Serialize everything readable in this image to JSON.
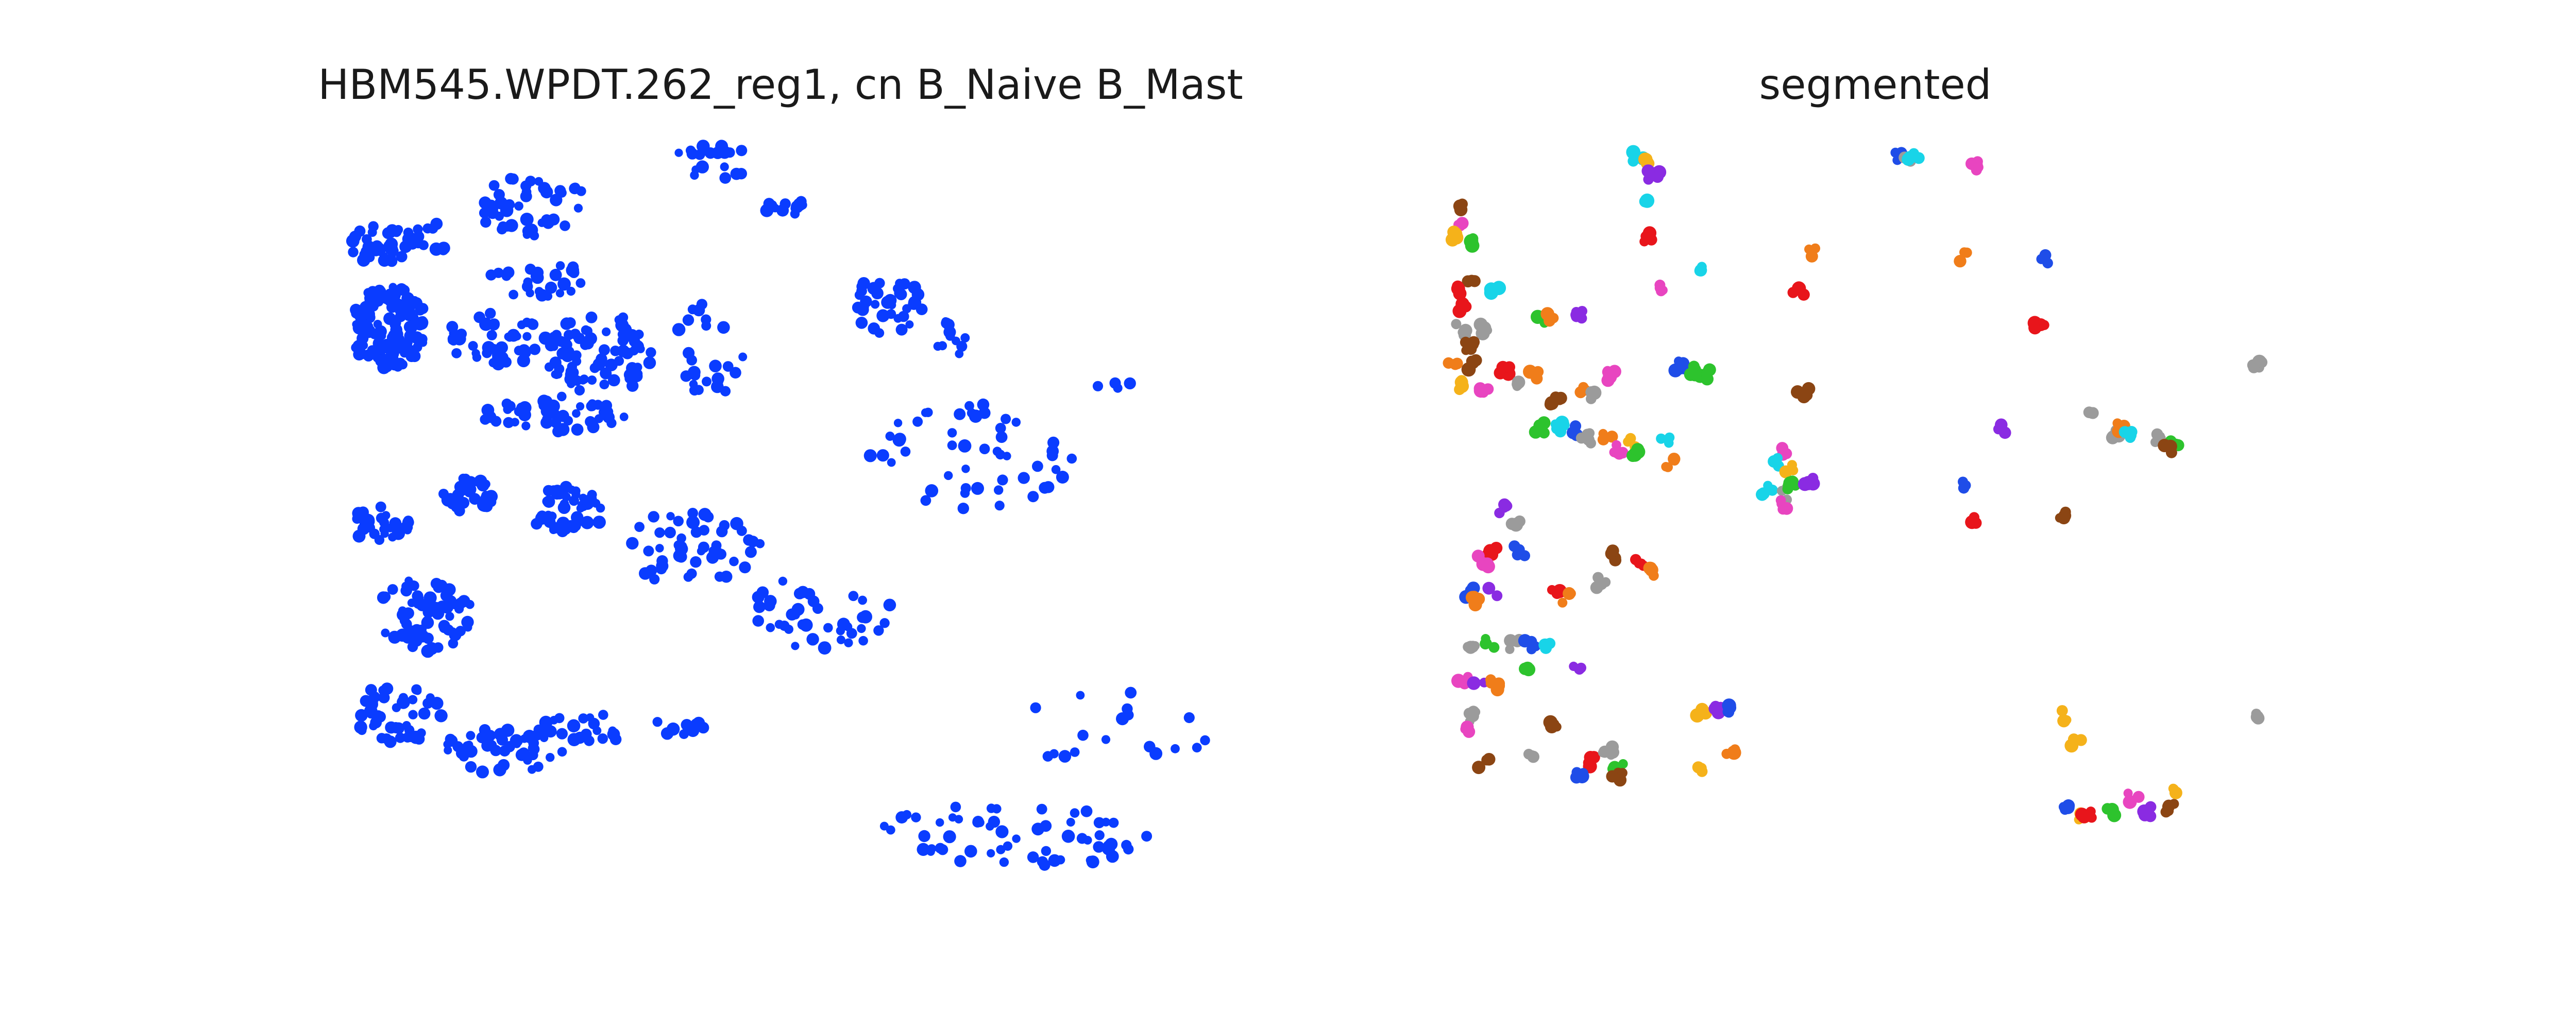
{
  "chart_data": [
    {
      "type": "scatter",
      "title": "HBM545.WPDT.262_reg1, cn B_Naive B_Mast",
      "axes_visible": false,
      "xlim": [
        0,
        1000
      ],
      "ylim": [
        0,
        900
      ],
      "color": "#0a3cff",
      "series": [
        {
          "clusters": [
            {
              "cx": 40,
              "cy": 140,
              "rx": 40,
              "ry": 25,
              "n": 40
            },
            {
              "cx": 50,
              "cy": 250,
              "rx": 45,
              "ry": 55,
              "n": 120
            },
            {
              "cx": 100,
              "cy": 130,
              "rx": 30,
              "ry": 20,
              "n": 12
            },
            {
              "cx": 210,
              "cy": 90,
              "rx": 70,
              "ry": 40,
              "n": 45
            },
            {
              "cx": 220,
              "cy": 185,
              "rx": 55,
              "ry": 25,
              "n": 25
            },
            {
              "cx": 170,
              "cy": 265,
              "rx": 60,
              "ry": 35,
              "n": 45
            },
            {
              "cx": 290,
              "cy": 285,
              "rx": 60,
              "ry": 55,
              "n": 80
            },
            {
              "cx": 240,
              "cy": 365,
              "rx": 85,
              "ry": 25,
              "n": 45
            },
            {
              "cx": 420,
              "cy": 30,
              "rx": 45,
              "ry": 25,
              "n": 20
            },
            {
              "cx": 505,
              "cy": 90,
              "rx": 25,
              "ry": 15,
              "n": 12
            },
            {
              "cx": 415,
              "cy": 285,
              "rx": 40,
              "ry": 70,
              "n": 25
            },
            {
              "cx": 620,
              "cy": 220,
              "rx": 45,
              "ry": 40,
              "n": 35
            },
            {
              "cx": 690,
              "cy": 260,
              "rx": 20,
              "ry": 30,
              "n": 12
            },
            {
              "cx": 710,
              "cy": 420,
              "rx": 120,
              "ry": 70,
              "n": 50
            },
            {
              "cx": 890,
              "cy": 330,
              "rx": 40,
              "ry": 10,
              "n": 4
            },
            {
              "cx": 40,
              "cy": 510,
              "rx": 35,
              "ry": 25,
              "n": 30
            },
            {
              "cx": 140,
              "cy": 470,
              "rx": 30,
              "ry": 25,
              "n": 35
            },
            {
              "cx": 250,
              "cy": 490,
              "rx": 50,
              "ry": 30,
              "n": 45
            },
            {
              "cx": 400,
              "cy": 540,
              "rx": 75,
              "ry": 55,
              "n": 50
            },
            {
              "cx": 90,
              "cy": 630,
              "rx": 55,
              "ry": 50,
              "n": 65
            },
            {
              "cx": 60,
              "cy": 760,
              "rx": 50,
              "ry": 40,
              "n": 45
            },
            {
              "cx": 180,
              "cy": 810,
              "rx": 70,
              "ry": 30,
              "n": 45
            },
            {
              "cx": 270,
              "cy": 780,
              "rx": 55,
              "ry": 25,
              "n": 25
            },
            {
              "cx": 380,
              "cy": 780,
              "rx": 30,
              "ry": 15,
              "n": 10
            },
            {
              "cx": 540,
              "cy": 630,
              "rx": 90,
              "ry": 50,
              "n": 40
            },
            {
              "cx": 720,
              "cy": 1000,
              "rx": 0,
              "ry": 0,
              "n": 0
            },
            {
              "cx": 720,
              "cy": 960,
              "rx": 0,
              "ry": 0,
              "n": 0
            },
            {
              "cx": 770,
              "cy": 920,
              "rx": 160,
              "ry": 45,
              "n": 60
            },
            {
              "cx": 880,
              "cy": 780,
              "rx": 110,
              "ry": 60,
              "n": 18
            }
          ]
        }
      ]
    },
    {
      "type": "scatter",
      "title": "segmented",
      "axes_visible": false,
      "xlim": [
        0,
        1000
      ],
      "ylim": [
        0,
        900
      ],
      "palette": [
        "#1f4de8",
        "#e8151b",
        "#f5b21a",
        "#2dc32d",
        "#f07d1a",
        "#8b4513",
        "#9b9b9b",
        "#e845c0",
        "#8a2be2",
        "#18d4e8"
      ],
      "series": [
        {
          "blobs": [
            {
              "x": 360,
              "y": 15,
              "c": 9
            },
            {
              "x": 375,
              "y": 20,
              "c": 2
            },
            {
              "x": 860,
              "y": 15,
              "c": 0
            },
            {
              "x": 880,
              "y": 20,
              "c": 6
            },
            {
              "x": 895,
              "y": 15,
              "c": 9
            },
            {
              "x": 1010,
              "y": 30,
              "c": 7
            },
            {
              "x": 20,
              "y": 110,
              "c": 5
            },
            {
              "x": 10,
              "y": 150,
              "c": 7
            },
            {
              "x": 0,
              "y": 170,
              "c": 2
            },
            {
              "x": 30,
              "y": 180,
              "c": 3
            },
            {
              "x": 390,
              "y": 50,
              "c": 8
            },
            {
              "x": 380,
              "y": 100,
              "c": 9
            },
            {
              "x": 380,
              "y": 170,
              "c": 1
            },
            {
              "x": 40,
              "y": 250,
              "c": 5
            },
            {
              "x": 20,
              "y": 270,
              "c": 1
            },
            {
              "x": 80,
              "y": 280,
              "c": 9
            },
            {
              "x": 20,
              "y": 310,
              "c": 1
            },
            {
              "x": 15,
              "y": 350,
              "c": 6
            },
            {
              "x": 60,
              "y": 350,
              "c": 6
            },
            {
              "x": 30,
              "y": 380,
              "c": 5
            },
            {
              "x": 0,
              "y": 410,
              "c": 4
            },
            {
              "x": 40,
              "y": 420,
              "c": 5
            },
            {
              "x": 20,
              "y": 460,
              "c": 2
            },
            {
              "x": 60,
              "y": 470,
              "c": 7
            },
            {
              "x": 100,
              "y": 430,
              "c": 1
            },
            {
              "x": 130,
              "y": 450,
              "c": 6
            },
            {
              "x": 160,
              "y": 440,
              "c": 4
            },
            {
              "x": 170,
              "y": 330,
              "c": 3
            },
            {
              "x": 185,
              "y": 330,
              "c": 4
            },
            {
              "x": 240,
              "y": 320,
              "c": 8
            },
            {
              "x": 200,
              "y": 490,
              "c": 5
            },
            {
              "x": 250,
              "y": 470,
              "c": 4
            },
            {
              "x": 270,
              "y": 480,
              "c": 6
            },
            {
              "x": 310,
              "y": 440,
              "c": 7
            },
            {
              "x": 490,
              "y": 225,
              "c": 9
            },
            {
              "x": 440,
              "y": 420,
              "c": 0
            },
            {
              "x": 470,
              "y": 430,
              "c": 3
            },
            {
              "x": 490,
              "y": 435,
              "c": 3
            },
            {
              "x": 410,
              "y": 270,
              "c": 7
            },
            {
              "x": 170,
              "y": 540,
              "c": 3
            },
            {
              "x": 210,
              "y": 540,
              "c": 9
            },
            {
              "x": 230,
              "y": 545,
              "c": 0
            },
            {
              "x": 260,
              "y": 560,
              "c": 6
            },
            {
              "x": 300,
              "y": 555,
              "c": 4
            },
            {
              "x": 320,
              "y": 580,
              "c": 7
            },
            {
              "x": 350,
              "y": 570,
              "c": 2
            },
            {
              "x": 360,
              "y": 590,
              "c": 3
            },
            {
              "x": 410,
              "y": 560,
              "c": 9
            },
            {
              "x": 420,
              "y": 610,
              "c": 4
            },
            {
              "x": 700,
              "y": 200,
              "c": 4
            },
            {
              "x": 990,
              "y": 210,
              "c": 4
            },
            {
              "x": 670,
              "y": 280,
              "c": 1
            },
            {
              "x": 1150,
              "y": 210,
              "c": 0
            },
            {
              "x": 1140,
              "y": 340,
              "c": 1
            },
            {
              "x": 1560,
              "y": 420,
              "c": 6
            },
            {
              "x": 100,
              "y": 700,
              "c": 8
            },
            {
              "x": 120,
              "y": 730,
              "c": 6
            },
            {
              "x": 130,
              "y": 780,
              "c": 0
            },
            {
              "x": 80,
              "y": 780,
              "c": 1
            },
            {
              "x": 60,
              "y": 800,
              "c": 7
            },
            {
              "x": 30,
              "y": 860,
              "c": 0
            },
            {
              "x": 40,
              "y": 880,
              "c": 4
            },
            {
              "x": 80,
              "y": 860,
              "c": 8
            },
            {
              "x": 200,
              "y": 860,
              "c": 1
            },
            {
              "x": 220,
              "y": 870,
              "c": 4
            },
            {
              "x": 310,
              "y": 790,
              "c": 5
            },
            {
              "x": 290,
              "y": 840,
              "c": 6
            },
            {
              "x": 360,
              "y": 800,
              "c": 1
            },
            {
              "x": 390,
              "y": 820,
              "c": 4
            },
            {
              "x": 40,
              "y": 970,
              "c": 6
            },
            {
              "x": 70,
              "y": 960,
              "c": 3
            },
            {
              "x": 120,
              "y": 960,
              "c": 6
            },
            {
              "x": 150,
              "y": 960,
              "c": 0
            },
            {
              "x": 180,
              "y": 960,
              "c": 9
            },
            {
              "x": 20,
              "y": 1030,
              "c": 7
            },
            {
              "x": 50,
              "y": 1040,
              "c": 8
            },
            {
              "x": 80,
              "y": 1040,
              "c": 4
            },
            {
              "x": 140,
              "y": 1010,
              "c": 3
            },
            {
              "x": 40,
              "y": 1100,
              "c": 6
            },
            {
              "x": 30,
              "y": 1120,
              "c": 7
            },
            {
              "x": 200,
              "y": 1120,
              "c": 5
            },
            {
              "x": 60,
              "y": 1190,
              "c": 5
            },
            {
              "x": 150,
              "y": 1180,
              "c": 6
            },
            {
              "x": 240,
              "y": 1010,
              "c": 8
            },
            {
              "x": 270,
              "y": 1190,
              "c": 1
            },
            {
              "x": 300,
              "y": 1170,
              "c": 6
            },
            {
              "x": 320,
              "y": 1200,
              "c": 3
            },
            {
              "x": 250,
              "y": 1220,
              "c": 0
            },
            {
              "x": 320,
              "y": 1215,
              "c": 5
            },
            {
              "x": 480,
              "y": 1090,
              "c": 2
            },
            {
              "x": 510,
              "y": 1090,
              "c": 8
            },
            {
              "x": 530,
              "y": 1085,
              "c": 0
            },
            {
              "x": 540,
              "y": 1170,
              "c": 4
            },
            {
              "x": 480,
              "y": 1200,
              "c": 2
            },
            {
              "x": 640,
              "y": 590,
              "c": 7
            },
            {
              "x": 630,
              "y": 610,
              "c": 9
            },
            {
              "x": 650,
              "y": 620,
              "c": 2
            },
            {
              "x": 610,
              "y": 660,
              "c": 9
            },
            {
              "x": 640,
              "y": 670,
              "c": 6
            },
            {
              "x": 660,
              "y": 650,
              "c": 3
            },
            {
              "x": 640,
              "y": 690,
              "c": 7
            },
            {
              "x": 690,
              "y": 640,
              "c": 8
            },
            {
              "x": 680,
              "y": 470,
              "c": 5
            },
            {
              "x": 1000,
              "y": 650,
              "c": 0
            },
            {
              "x": 1010,
              "y": 720,
              "c": 1
            },
            {
              "x": 1180,
              "y": 710,
              "c": 5
            },
            {
              "x": 1070,
              "y": 540,
              "c": 8
            },
            {
              "x": 1240,
              "y": 520,
              "c": 6
            },
            {
              "x": 1290,
              "y": 550,
              "c": 6
            },
            {
              "x": 1300,
              "y": 540,
              "c": 4
            },
            {
              "x": 1310,
              "y": 555,
              "c": 9
            },
            {
              "x": 1370,
              "y": 560,
              "c": 6
            },
            {
              "x": 1400,
              "y": 570,
              "c": 3
            },
            {
              "x": 1390,
              "y": 580,
              "c": 5
            },
            {
              "x": 1560,
              "y": 1100,
              "c": 6
            },
            {
              "x": 1190,
              "y": 1100,
              "c": 2
            },
            {
              "x": 1210,
              "y": 1150,
              "c": 2
            },
            {
              "x": 1190,
              "y": 1280,
              "c": 0
            },
            {
              "x": 1220,
              "y": 1300,
              "c": 2
            },
            {
              "x": 1230,
              "y": 1290,
              "c": 1
            },
            {
              "x": 1280,
              "y": 1285,
              "c": 3
            },
            {
              "x": 1320,
              "y": 1260,
              "c": 7
            },
            {
              "x": 1350,
              "y": 1285,
              "c": 8
            },
            {
              "x": 1390,
              "y": 1280,
              "c": 5
            },
            {
              "x": 1400,
              "y": 1250,
              "c": 2
            }
          ]
        }
      ]
    }
  ]
}
